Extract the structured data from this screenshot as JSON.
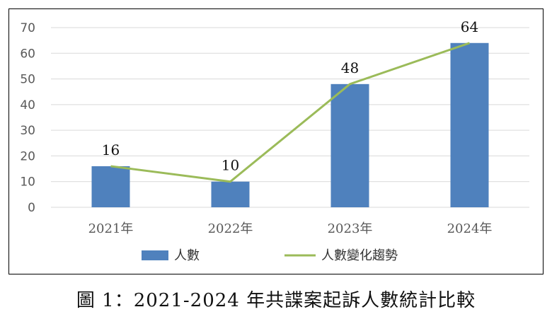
{
  "chart_data": {
    "type": "bar",
    "categories": [
      "2021年",
      "2022年",
      "2023年",
      "2024年"
    ],
    "series": [
      {
        "name": "人數",
        "kind": "bar",
        "color": "#4f81bd",
        "values": [
          16,
          10,
          48,
          64
        ]
      },
      {
        "name": "人數變化趨勢",
        "kind": "line",
        "color": "#9bbb59",
        "values": [
          16,
          10,
          48,
          64
        ]
      }
    ],
    "data_labels": [
      "16",
      "10",
      "48",
      "64"
    ],
    "yticks": [
      "0",
      "10",
      "20",
      "30",
      "40",
      "50",
      "60",
      "70"
    ],
    "ylim": [
      0,
      70
    ],
    "grid": true,
    "legend_position": "bottom"
  },
  "caption": "圖 1：2021-2024 年共諜案起訴人數統計比較"
}
